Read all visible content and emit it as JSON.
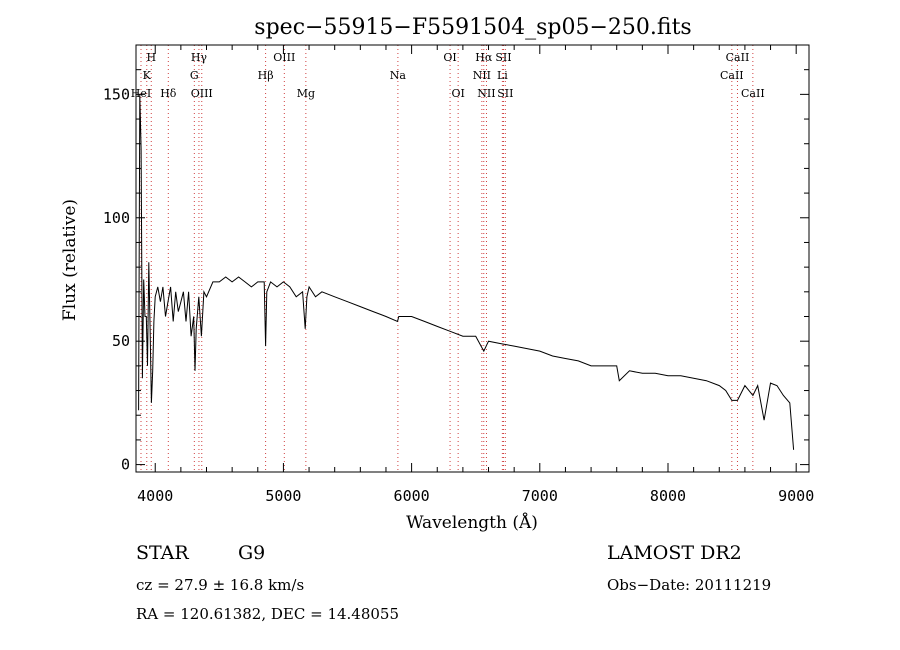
{
  "chart_data": {
    "type": "line",
    "title": "spec−55915−F5591504_sp05−250.fits",
    "xlabel": "Wavelength (Å)",
    "ylabel": "Flux (relative)",
    "xlim": [
      3850,
      9100
    ],
    "ylim": [
      -3,
      170
    ],
    "xticks": [
      {
        "value": 4000,
        "label": "4000"
      },
      {
        "value": 5000,
        "label": "5000"
      },
      {
        "value": 6000,
        "label": "6000"
      },
      {
        "value": 7000,
        "label": "7000"
      },
      {
        "value": 8000,
        "label": "8000"
      },
      {
        "value": 9000,
        "label": "9000"
      }
    ],
    "yticks": [
      {
        "value": 0,
        "label": "0"
      },
      {
        "value": 50,
        "label": "50"
      },
      {
        "value": 100,
        "label": "100"
      },
      {
        "value": 150,
        "label": "150"
      }
    ],
    "series": [
      {
        "name": "flux",
        "color": "#000000",
        "x": [
          3870,
          3880,
          3890,
          3900,
          3910,
          3920,
          3930,
          3940,
          3950,
          3960,
          3970,
          3980,
          3990,
          4000,
          4020,
          4040,
          4060,
          4080,
          4100,
          4120,
          4140,
          4160,
          4180,
          4200,
          4220,
          4240,
          4260,
          4280,
          4300,
          4310,
          4320,
          4340,
          4360,
          4380,
          4400,
          4450,
          4500,
          4550,
          4600,
          4650,
          4700,
          4750,
          4800,
          4850,
          4861,
          4870,
          4900,
          4950,
          5000,
          5050,
          5100,
          5150,
          5170,
          5183,
          5200,
          5250,
          5300,
          5400,
          5500,
          5600,
          5700,
          5800,
          5890,
          5900,
          6000,
          6100,
          6200,
          6300,
          6400,
          6500,
          6563,
          6600,
          6700,
          6800,
          6900,
          7000,
          7100,
          7200,
          7300,
          7400,
          7500,
          7600,
          7620,
          7700,
          7800,
          7900,
          8000,
          8100,
          8200,
          8300,
          8400,
          8450,
          8498,
          8542,
          8600,
          8662,
          8700,
          8750,
          8800,
          8850,
          8900,
          8950,
          8980
        ],
        "y": [
          22,
          150,
          128,
          35,
          75,
          60,
          60,
          40,
          82,
          55,
          25,
          38,
          58,
          68,
          72,
          66,
          72,
          60,
          66,
          72,
          58,
          70,
          62,
          66,
          70,
          58,
          70,
          52,
          60,
          38,
          55,
          68,
          52,
          70,
          68,
          74,
          74,
          76,
          74,
          76,
          74,
          72,
          74,
          74,
          48,
          70,
          74,
          72,
          74,
          72,
          68,
          70,
          55,
          68,
          72,
          68,
          70,
          68,
          66,
          64,
          62,
          60,
          58,
          60,
          60,
          58,
          56,
          54,
          52,
          52,
          46,
          50,
          49,
          48,
          47,
          46,
          44,
          43,
          42,
          40,
          40,
          40,
          34,
          38,
          37,
          37,
          36,
          36,
          35,
          34,
          32,
          30,
          26,
          26,
          32,
          28,
          32,
          18,
          33,
          32,
          28,
          25,
          6
        ]
      }
    ],
    "line_markers": [
      {
        "label": "H",
        "wavelength": 3969,
        "row": 0
      },
      {
        "label": "K",
        "wavelength": 3934,
        "row": 1
      },
      {
        "label": "HeI",
        "wavelength": 3889,
        "row": 2
      },
      {
        "label": "Hδ",
        "wavelength": 4102,
        "row": 2
      },
      {
        "label": "Hγ",
        "wavelength": 4341,
        "row": 0
      },
      {
        "label": "G",
        "wavelength": 4305,
        "row": 1
      },
      {
        "label": "OIII",
        "wavelength": 4363,
        "row": 2
      },
      {
        "label": "Hβ",
        "wavelength": 4861,
        "row": 1
      },
      {
        "label": "OIII",
        "wavelength": 5007,
        "row": 0
      },
      {
        "label": "Mg",
        "wavelength": 5175,
        "row": 2
      },
      {
        "label": "Na",
        "wavelength": 5893,
        "row": 1
      },
      {
        "label": "OI",
        "wavelength": 6300,
        "row": 0
      },
      {
        "label": "OI",
        "wavelength": 6363,
        "row": 2
      },
      {
        "label": "Hα",
        "wavelength": 6563,
        "row": 0
      },
      {
        "label": "SII",
        "wavelength": 6717,
        "row": 0
      },
      {
        "label": "NII",
        "wavelength": 6548,
        "row": 1
      },
      {
        "label": "Li",
        "wavelength": 6708,
        "row": 1
      },
      {
        "label": "NII",
        "wavelength": 6584,
        "row": 2
      },
      {
        "label": "SII",
        "wavelength": 6731,
        "row": 2
      },
      {
        "label": "CaII",
        "wavelength": 8542,
        "row": 0
      },
      {
        "label": "CaII",
        "wavelength": 8498,
        "row": 1
      },
      {
        "label": "CaII",
        "wavelength": 8662,
        "row": 2
      }
    ]
  },
  "info": {
    "object_class": "STAR",
    "subclass": "G9",
    "cz": "cz = 27.9 ± 16.8 km/s",
    "coords": "RA = 120.61382, DEC =  14.48055",
    "survey": "LAMOST DR2",
    "obs_date": "Obs−Date: 20111219"
  }
}
